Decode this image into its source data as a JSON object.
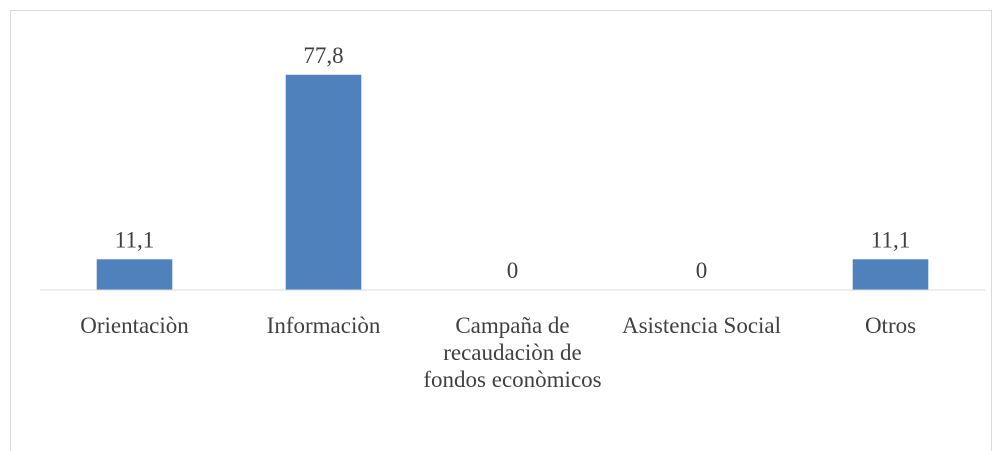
{
  "chart_data": {
    "type": "bar",
    "categories": [
      "Orientaciòn",
      "Informaciòn",
      "Campaña de recaudaciòn de fondos econòmicos",
      "Asistencia Social",
      "Otros"
    ],
    "values": [
      11.1,
      77.8,
      0,
      0,
      11.1
    ],
    "value_labels": [
      "11,1",
      "77,8",
      "0",
      "0",
      "11,1"
    ],
    "color": "#4f81bd",
    "ylim": [
      0,
      90
    ]
  }
}
